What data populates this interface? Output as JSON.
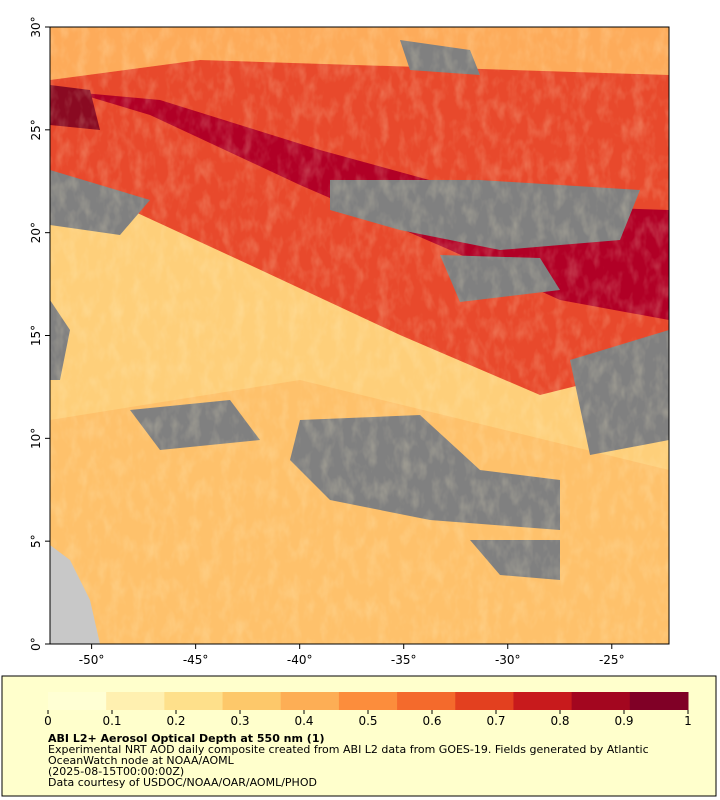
{
  "map": {
    "xlim": [
      -52,
      -22.25
    ],
    "ylim": [
      0,
      30
    ],
    "xticks": [
      {
        "value": -50,
        "label": "-50°"
      },
      {
        "value": -45,
        "label": "-45°"
      },
      {
        "value": -40,
        "label": "-40°"
      },
      {
        "value": -35,
        "label": "-35°"
      },
      {
        "value": -30,
        "label": "-30°"
      },
      {
        "value": -25,
        "label": "-25°"
      }
    ],
    "yticks": [
      {
        "value": 0,
        "label": "0°"
      },
      {
        "value": 5,
        "label": "5°"
      },
      {
        "value": 10,
        "label": "10°"
      },
      {
        "value": 15,
        "label": "15°"
      },
      {
        "value": 20,
        "label": "20°"
      },
      {
        "value": 25,
        "label": "25°"
      },
      {
        "value": 30,
        "label": "30°"
      }
    ]
  },
  "legend": {
    "title": "ABI L2+ Aerosol Optical Depth at 550 nm (1)",
    "lines": [
      "Experimental NRT AOD daily composite created from ABI L2 data from GOES-19. Fields generated by Atlantic OceanWatch node at NOAA/AOML",
      "(2025-08-15T00:00:00Z)",
      "Data courtesy of USDOC/NOAA/OAR/AOML/PHOD"
    ],
    "colorbar": {
      "lim": [
        0,
        1
      ],
      "ticks": [
        0,
        0.1,
        0.2,
        0.3,
        0.4,
        0.5,
        0.6,
        0.7,
        0.8,
        0.9,
        1
      ],
      "colors": [
        "#ffffd4",
        "#fff0b0",
        "#fee08b",
        "#fdc86a",
        "#fdae55",
        "#fc8d3c",
        "#f46a2c",
        "#e3401f",
        "#c81a1c",
        "#a3061f",
        "#800026"
      ]
    }
  }
}
